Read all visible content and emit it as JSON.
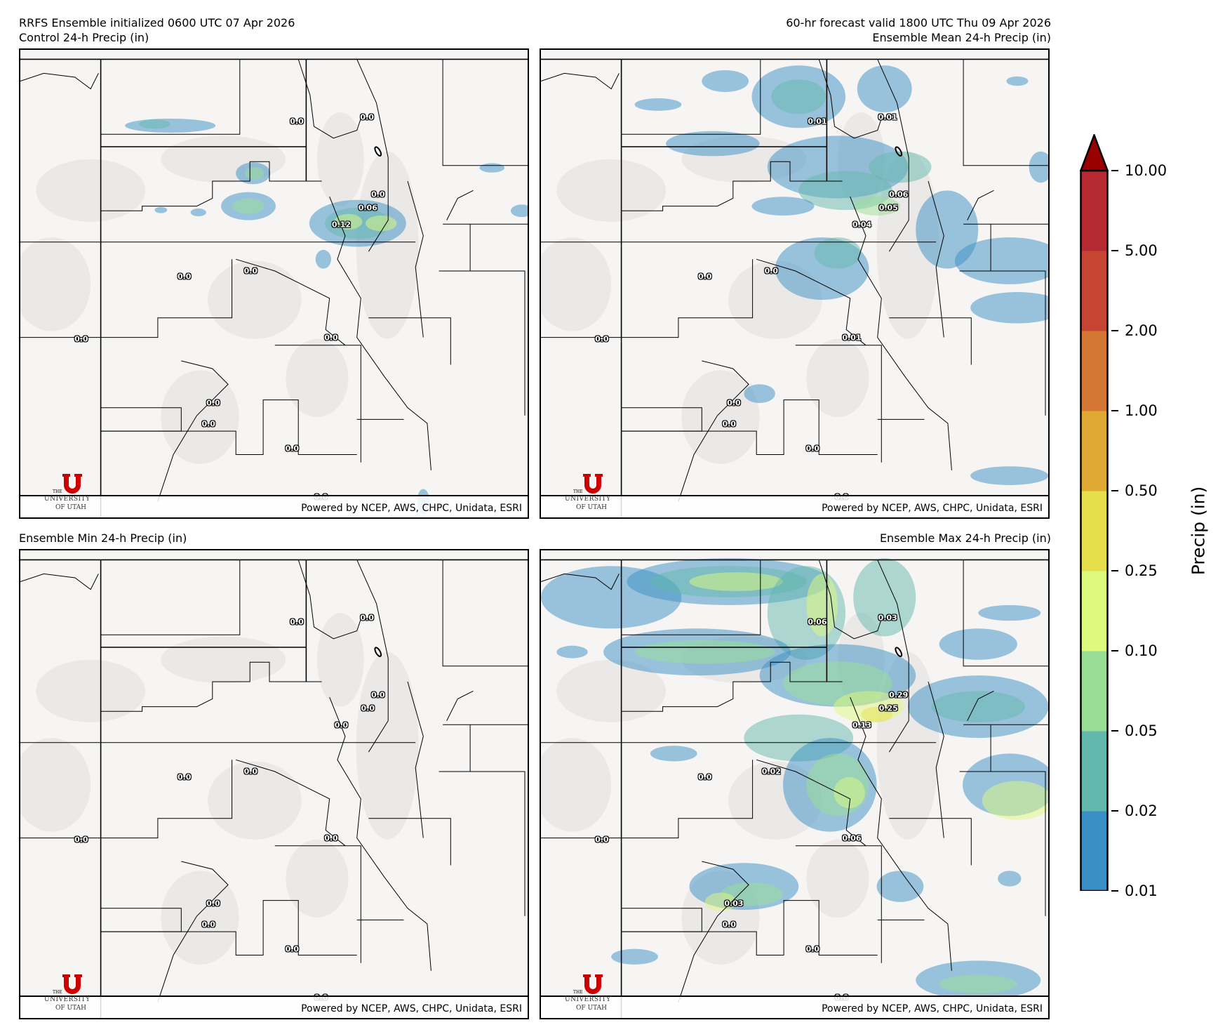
{
  "header": {
    "left_line1": "RRFS Ensemble initialized 0600 UTC 07 Apr 2026",
    "right_line1": "60-hr forecast valid 1800 UTC Thu 09 Apr 2026"
  },
  "panels": [
    {
      "title": "Control 24-h Precip (in)",
      "station_values": [
        "0.0",
        "0.0",
        "0.0",
        "0.06",
        "0.12",
        "0.0",
        "0.0",
        "0.0",
        "0.0",
        "0.0",
        "0.0",
        "0.0",
        "0.0"
      ]
    },
    {
      "title": "Ensemble Mean 24-h Precip (in)",
      "station_values": [
        "0.01",
        "0.01",
        "0.06",
        "0.05",
        "0.04",
        "0.0",
        "0.0",
        "0.0",
        "0.01",
        "0.0",
        "0.0",
        "0.0",
        "0.0"
      ]
    },
    {
      "title": "Ensemble Min 24-h Precip (in)",
      "station_values": [
        "0.0",
        "0.0",
        "0.0",
        "0.0",
        "0.0",
        "0.0",
        "0.0",
        "0.0",
        "0.0",
        "0.0",
        "0.0",
        "0.0",
        "0.0"
      ]
    },
    {
      "title": "Ensemble Max 24-h Precip (in)",
      "station_values": [
        "0.06",
        "0.03",
        "0.29",
        "0.25",
        "0.13",
        "0.0",
        "0.02",
        "0.0",
        "0.06",
        "0.03",
        "0.0",
        "0.0",
        "0.0"
      ]
    }
  ],
  "footer": {
    "credit": "Powered by NCEP, AWS, CHPC, Unidata, ESRI"
  },
  "logo": {
    "the": "THE",
    "university": "UNIVERSITY",
    "of_utah": "OF UTAH",
    "color": "#cc0000"
  },
  "colorbar": {
    "label": "Precip (in)",
    "ticks": [
      "0.01",
      "0.02",
      "0.05",
      "0.10",
      "0.25",
      "0.50",
      "1.00",
      "2.00",
      "5.00",
      "10.00"
    ],
    "colors": [
      "#3a8fc4",
      "#62b8ac",
      "#9ade95",
      "#ddf97e",
      "#e6df4c",
      "#dfa934",
      "#d47634",
      "#c54532",
      "#b52a30"
    ],
    "extend_color": "#990000"
  }
}
